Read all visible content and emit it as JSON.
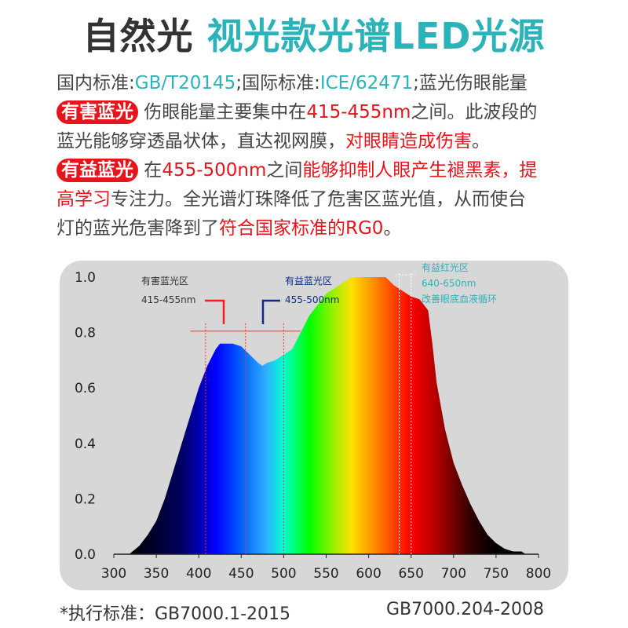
{
  "title": {
    "part1": "自然光",
    "part2": "视光款光谱LED光源"
  },
  "text": {
    "l1a": "国内标准:",
    "l1b": "GB/T20145",
    "l1c": ";国际标准:",
    "l1d": "ICE/62471",
    "l1e": ";蓝光伤眼能量",
    "pill1": "有害蓝光",
    "l2a": " 伤眼能量主要集中在",
    "l2b": "415-455nm",
    "l2c": "之间。此波段的",
    "l3a": "蓝光能够穿透晶状体，直达视网膜，",
    "l3b": "对眼睛造成伤害",
    "l3c": "。",
    "pill2": "有益蓝光",
    "l4a": " 在",
    "l4b": "455-500nm",
    "l4c": "之间",
    "l4d": "能够抑制人眼产生褪黑素，提",
    "l5a": "高学习",
    "l5b": "专注力。全光谱灯珠降低了危害区蓝光值，从而使台",
    "l6a": "灯的蓝光危害降到了",
    "l6b": "符合国家标准的RG0",
    "l6c": "。"
  },
  "footer": {
    "left": "*执行标准：GB7000.1-2015",
    "right": "GB7000.204-2008"
  },
  "chart_data": {
    "type": "area",
    "xlim": [
      300,
      800
    ],
    "ylim": [
      0,
      1
    ],
    "xticks": [
      300,
      350,
      400,
      450,
      500,
      550,
      600,
      650,
      700,
      750,
      800
    ],
    "yticks": [
      "0.0",
      "0.2",
      "0.4",
      "0.6",
      "0.8",
      "1.0"
    ],
    "x": [
      318,
      330,
      340,
      350,
      360,
      370,
      380,
      390,
      400,
      410,
      420,
      425,
      440,
      450,
      460,
      470,
      475,
      480,
      490,
      500,
      510,
      520,
      530,
      540,
      550,
      560,
      570,
      580,
      600,
      620,
      630,
      640,
      650,
      660,
      670,
      675,
      680,
      690,
      700,
      710,
      720,
      730,
      740,
      750,
      760,
      770,
      780,
      785
    ],
    "y": [
      0,
      0.03,
      0.07,
      0.12,
      0.2,
      0.3,
      0.4,
      0.5,
      0.6,
      0.68,
      0.74,
      0.76,
      0.76,
      0.75,
      0.72,
      0.69,
      0.68,
      0.69,
      0.7,
      0.72,
      0.74,
      0.8,
      0.86,
      0.9,
      0.94,
      0.96,
      0.98,
      1.0,
      1.0,
      1.0,
      0.97,
      0.95,
      0.93,
      0.92,
      0.88,
      0.76,
      0.62,
      0.45,
      0.33,
      0.25,
      0.18,
      0.12,
      0.07,
      0.04,
      0.02,
      0.01,
      0.01,
      0
    ],
    "annotations": [
      {
        "title": "有害蓝光区",
        "range": "415-455nm",
        "from": 408,
        "to": 455,
        "color": "#ff1a1a"
      },
      {
        "title": "有益蓝光区",
        "range": "455-500nm",
        "from": 455,
        "to": 500,
        "color": "#0c2a86"
      },
      {
        "title": "有益红光区",
        "range": "640-650nm",
        "note": "改善眼底血液循环",
        "from": 636,
        "to": 650,
        "color": "#2bb3b9"
      }
    ]
  }
}
